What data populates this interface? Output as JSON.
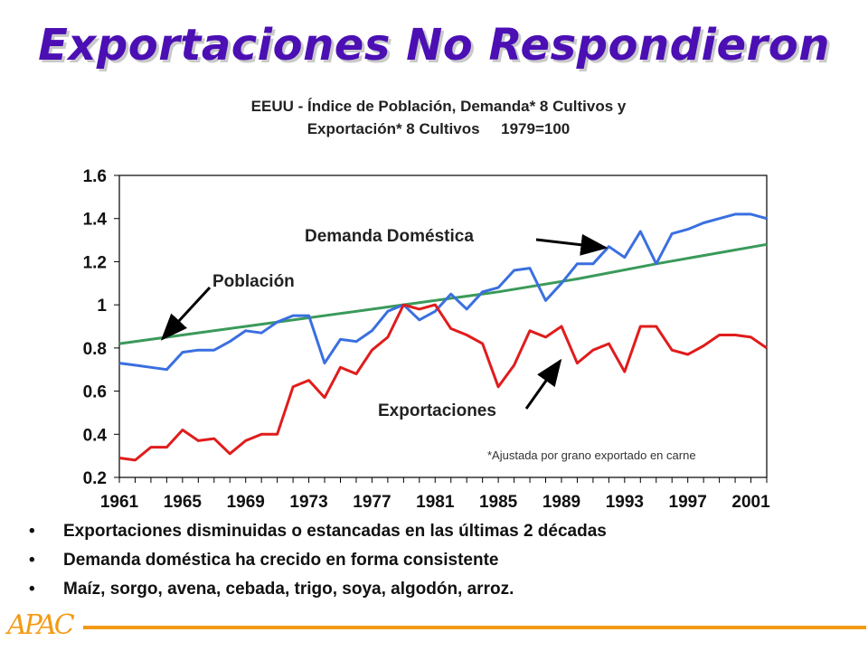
{
  "slide": {
    "title": "Exportaciones No Respondieron",
    "bullets": [
      "Exportaciones disminuidas o estancadas en las últimas 2 décadas",
      "Demanda doméstica ha crecido en forma consistente",
      "Maíz, sorgo, avena, cebada, trigo, soya, algodón, arroz."
    ],
    "logo": "APAC",
    "accent_color": "#f39a15",
    "title_color": "#4b0fb4"
  },
  "chart_data": {
    "type": "line",
    "title_line1": "EEUU - Índice de Población, Demanda* 8 Cultivos y",
    "title_line2": "Exportación* 8 Cultivos     1979=100",
    "footnote": "*Ajustada por grano exportado en carne",
    "ylim": [
      0.2,
      1.6
    ],
    "yticks": [
      "1.6",
      "1.4",
      "1.2",
      "1",
      "0.8",
      "0.6",
      "0.4",
      "0.2"
    ],
    "ytick_values": [
      1.6,
      1.4,
      1.2,
      1.0,
      0.8,
      0.6,
      0.4,
      0.2
    ],
    "xticks": [
      "1961",
      "1965",
      "1969",
      "1973",
      "1977",
      "1981",
      "1985",
      "1989",
      "1993",
      "1997",
      "2001"
    ],
    "xlim": [
      1961,
      2002
    ],
    "grid": false,
    "series": [
      {
        "name": "Población",
        "color": "#3a9a5a",
        "x": [
          1961,
          1965,
          1970,
          1975,
          1979,
          1985,
          1990,
          1995,
          2002
        ],
        "values": [
          0.82,
          0.86,
          0.91,
          0.96,
          1.0,
          1.06,
          1.12,
          1.19,
          1.28
        ]
      },
      {
        "name": "Demanda Doméstica",
        "color": "#3a6fe0",
        "x": [
          1961,
          1962,
          1963,
          1964,
          1965,
          1966,
          1967,
          1968,
          1969,
          1970,
          1971,
          1972,
          1973,
          1974,
          1975,
          1976,
          1977,
          1978,
          1979,
          1980,
          1981,
          1982,
          1983,
          1984,
          1985,
          1986,
          1987,
          1988,
          1989,
          1990,
          1991,
          1992,
          1993,
          1994,
          1995,
          1996,
          1997,
          1998,
          1999,
          2000,
          2001,
          2002
        ],
        "values": [
          0.73,
          0.72,
          0.71,
          0.7,
          0.78,
          0.79,
          0.79,
          0.83,
          0.88,
          0.87,
          0.92,
          0.95,
          0.95,
          0.73,
          0.84,
          0.83,
          0.88,
          0.97,
          1.0,
          0.93,
          0.97,
          1.05,
          0.98,
          1.06,
          1.08,
          1.16,
          1.17,
          1.02,
          1.1,
          1.19,
          1.19,
          1.27,
          1.22,
          1.34,
          1.19,
          1.33,
          1.35,
          1.38,
          1.4,
          1.42,
          1.42,
          1.4
        ]
      },
      {
        "name": "Exportaciones",
        "color": "#e01c1c",
        "x": [
          1961,
          1962,
          1963,
          1964,
          1965,
          1966,
          1967,
          1968,
          1969,
          1970,
          1971,
          1972,
          1973,
          1974,
          1975,
          1976,
          1977,
          1978,
          1979,
          1980,
          1981,
          1982,
          1983,
          1984,
          1985,
          1986,
          1987,
          1988,
          1989,
          1990,
          1991,
          1992,
          1993,
          1994,
          1995,
          1996,
          1997,
          1998,
          1999,
          2000,
          2001,
          2002
        ],
        "values": [
          0.29,
          0.28,
          0.34,
          0.34,
          0.42,
          0.37,
          0.38,
          0.31,
          0.37,
          0.4,
          0.4,
          0.62,
          0.65,
          0.57,
          0.71,
          0.68,
          0.79,
          0.85,
          1.0,
          0.98,
          1.0,
          0.89,
          0.86,
          0.82,
          0.62,
          0.72,
          0.88,
          0.85,
          0.9,
          0.73,
          0.79,
          0.82,
          0.69,
          0.9,
          0.9,
          0.79,
          0.77,
          0.81,
          0.86,
          0.86,
          0.85,
          0.8
        ]
      }
    ],
    "annotations": [
      {
        "text": "Demanda Doméstica",
        "series": "Demanda Doméstica"
      },
      {
        "text": "Población",
        "series": "Población"
      },
      {
        "text": "Exportaciones",
        "series": "Exportaciones"
      }
    ]
  }
}
